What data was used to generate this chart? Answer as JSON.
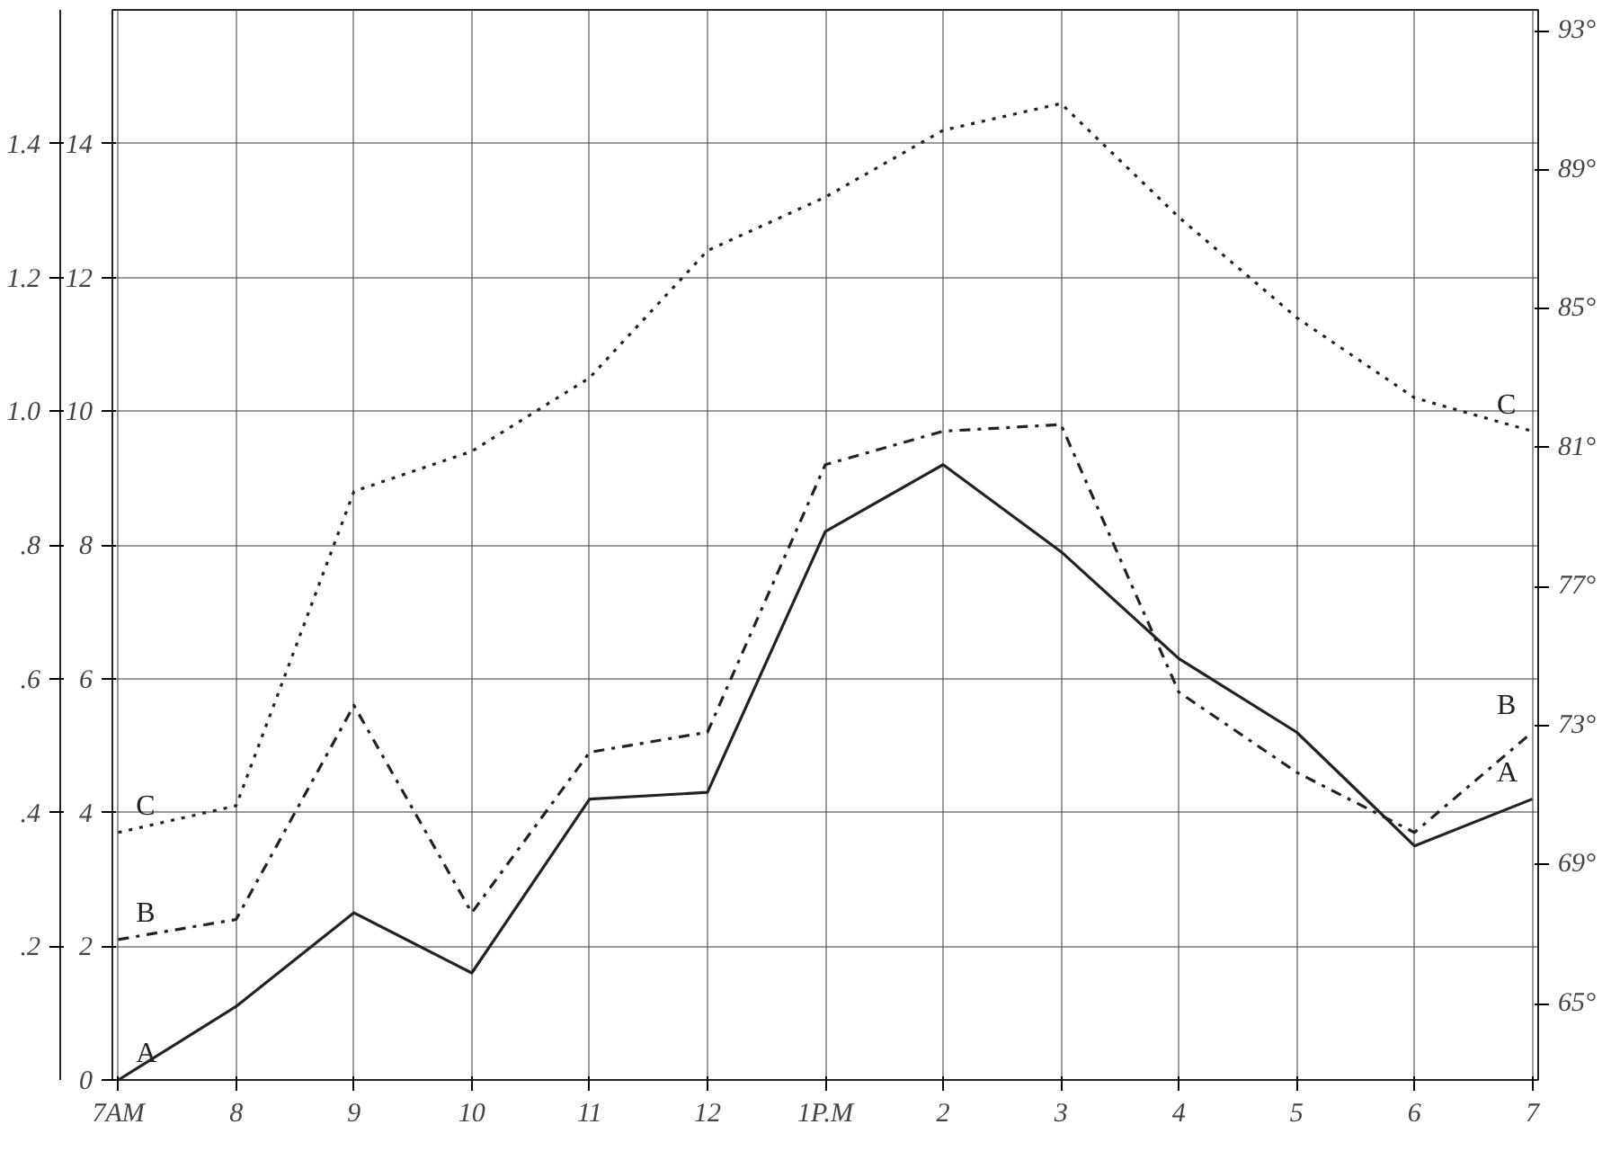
{
  "chart_data": {
    "type": "line",
    "categories": [
      "7AM",
      "8",
      "9",
      "10",
      "11",
      "12",
      "1P.M",
      "2",
      "3",
      "4",
      "5",
      "6",
      "7"
    ],
    "series": [
      {
        "name": "A",
        "color": "#222222",
        "line_style": "solid",
        "values": [
          0,
          1.1,
          2.5,
          1.6,
          4.2,
          4.3,
          8.2,
          9.2,
          7.9,
          6.3,
          5.2,
          3.5,
          4.2
        ]
      },
      {
        "name": "B",
        "color": "#222222",
        "line_style": "dashdot",
        "values": [
          2.1,
          2.4,
          5.6,
          2.5,
          4.9,
          5.2,
          9.2,
          9.7,
          9.8,
          5.8,
          4.6,
          3.7,
          5.2
        ]
      },
      {
        "name": "C",
        "color": "#222222",
        "line_style": "dotted",
        "values": [
          3.7,
          4.1,
          8.8,
          9.4,
          10.5,
          12.4,
          13.2,
          14.2,
          14.6,
          12.9,
          11.4,
          10.2,
          9.7
        ]
      }
    ],
    "ylim": [
      0,
      16
    ],
    "yticks": [
      0,
      2,
      4,
      6,
      8,
      10,
      12,
      14
    ],
    "y3lim": [
      0,
      1.6
    ],
    "y3ticks": [
      {
        "value": 0.2,
        "label": ".2"
      },
      {
        "value": 0.4,
        "label": ".4"
      },
      {
        "value": 0.6,
        "label": ".6"
      },
      {
        "value": 0.8,
        "label": ".8"
      },
      {
        "value": 1.0,
        "label": "1.0"
      },
      {
        "value": 1.2,
        "label": "1.2"
      },
      {
        "value": 1.4,
        "label": "1.4"
      }
    ],
    "y2lim": [
      62.8,
      93.6
    ],
    "y2ticks": [
      {
        "value": 65,
        "label": "65°"
      },
      {
        "value": 69,
        "label": "69°"
      },
      {
        "value": 73,
        "label": "73°"
      },
      {
        "value": 77,
        "label": "77°"
      },
      {
        "value": 81,
        "label": "81°"
      },
      {
        "value": 85,
        "label": "85°"
      },
      {
        "value": 89,
        "label": "89°"
      },
      {
        "value": 93,
        "label": "93°"
      }
    ],
    "grid": true,
    "marker": "none"
  }
}
